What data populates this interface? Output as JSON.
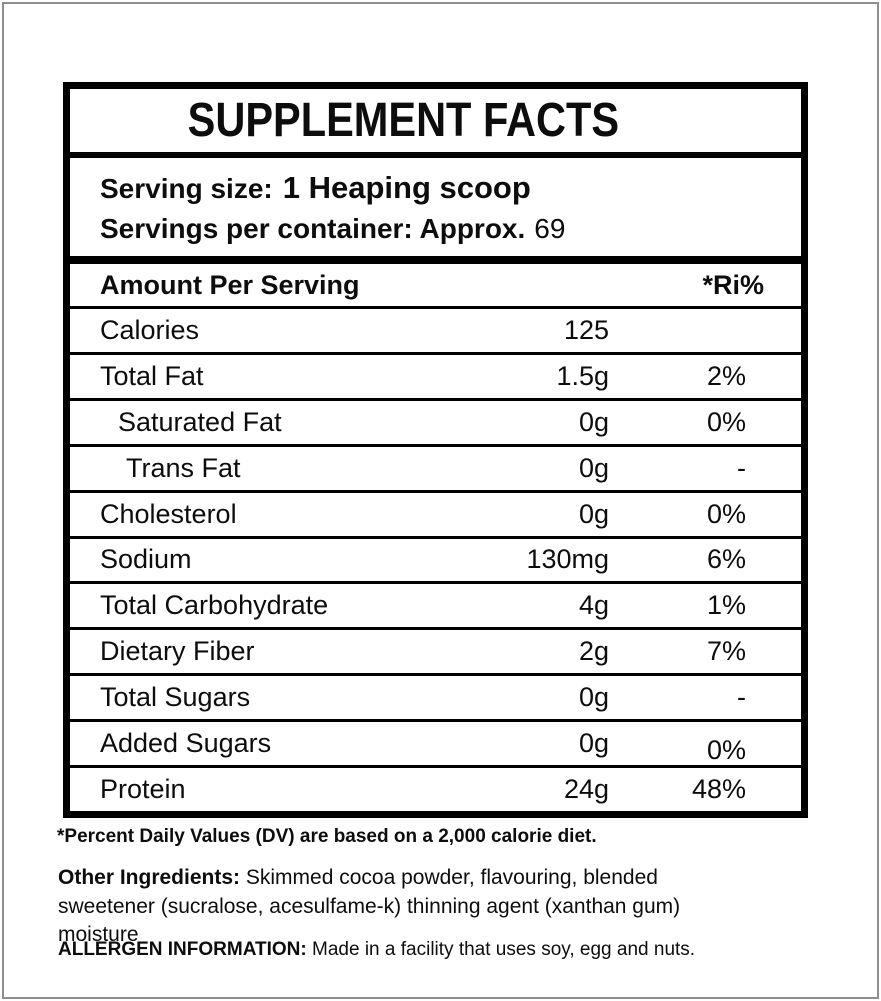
{
  "title": "SUPPLEMENT FACTS",
  "serving": {
    "size_label": "Serving size:",
    "size_value": "1 Heaping scoop",
    "per_container_label": "Servings per container: Approx.",
    "per_container_value": "69"
  },
  "table": {
    "header": {
      "amount_per_serving": "Amount Per Serving",
      "ri_percent": "*Ri%"
    },
    "rows": [
      {
        "label": "Calories",
        "amount": "125",
        "percent": ""
      },
      {
        "label": "Total Fat",
        "amount": "1.5g",
        "percent": "2%"
      },
      {
        "label": "Saturated Fat",
        "amount": "0g",
        "percent": "0%"
      },
      {
        "label": "Trans Fat",
        "amount": "0g",
        "percent": "-"
      },
      {
        "label": "Cholesterol",
        "amount": "0g",
        "percent": "0%"
      },
      {
        "label": "Sodium",
        "amount": "130mg",
        "percent": "6%"
      },
      {
        "label": "Total Carbohydrate",
        "amount": "4g",
        "percent": "1%"
      },
      {
        "label": "Dietary Fiber",
        "amount": "2g",
        "percent": "7%"
      },
      {
        "label": "Total Sugars",
        "amount": "0g",
        "percent": "-"
      },
      {
        "label": "Added Sugars",
        "amount": "0g",
        "percent": "0%"
      },
      {
        "label": "Protein",
        "amount": "24g",
        "percent": "48%"
      }
    ]
  },
  "footnote": "*Percent Daily Values (DV) are based on a 2,000 calorie diet.",
  "other_ingredients": {
    "label": "Other Ingredients:",
    "line1": "Skimmed cocoa powder, flavouring, blended",
    "line2": "sweetener (sucralose, acesulfame-k) thinning agent (xanthan gum)",
    "line3": "moisture"
  },
  "allergen": {
    "label": "ALLERGEN INFORMATION:",
    "text": "Made in a facility that uses soy, egg and nuts."
  }
}
